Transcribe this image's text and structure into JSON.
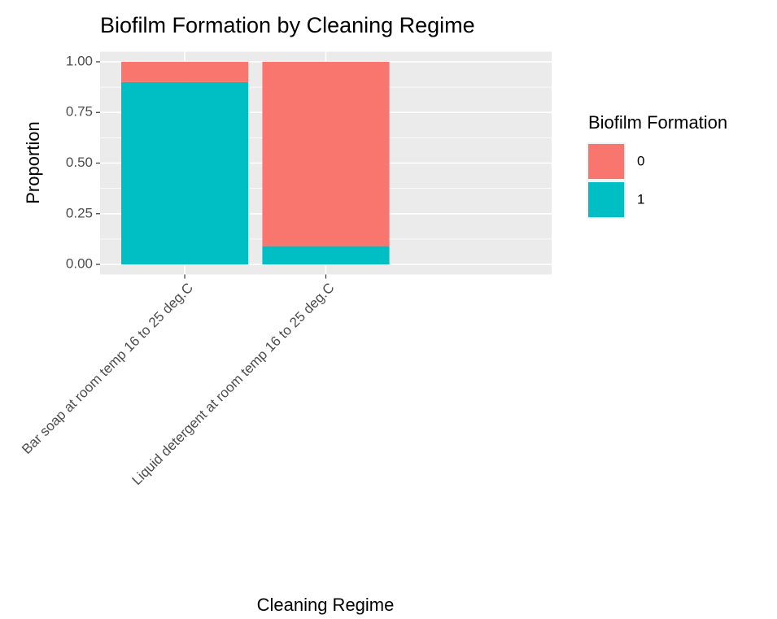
{
  "chart_data": {
    "type": "stacked_bar",
    "title": "Biofilm Formation by Cleaning Regime",
    "x_label": "Cleaning Regime",
    "y_label": "Proportion",
    "legend_title": "Biofilm Formation",
    "categories": [
      "Bar soap at room temp 16 to 25 deg.C",
      "Liquid detergent at room temp 16 to 25 deg.C"
    ],
    "series": [
      {
        "name": "0",
        "color": "#f8766d",
        "values": [
          0.1,
          0.91
        ]
      },
      {
        "name": "1",
        "color": "#00bfc4",
        "values": [
          0.9,
          0.09
        ]
      }
    ],
    "ylim": [
      -0.05,
      1.05
    ],
    "yticks": [
      {
        "value": 0,
        "label": "0.00"
      },
      {
        "value": 0.25,
        "label": "0.25"
      },
      {
        "value": 0.5,
        "label": "0.50"
      },
      {
        "value": 0.75,
        "label": "0.75"
      },
      {
        "value": 1,
        "label": "1.00"
      }
    ],
    "grid": true,
    "legend": "right"
  }
}
